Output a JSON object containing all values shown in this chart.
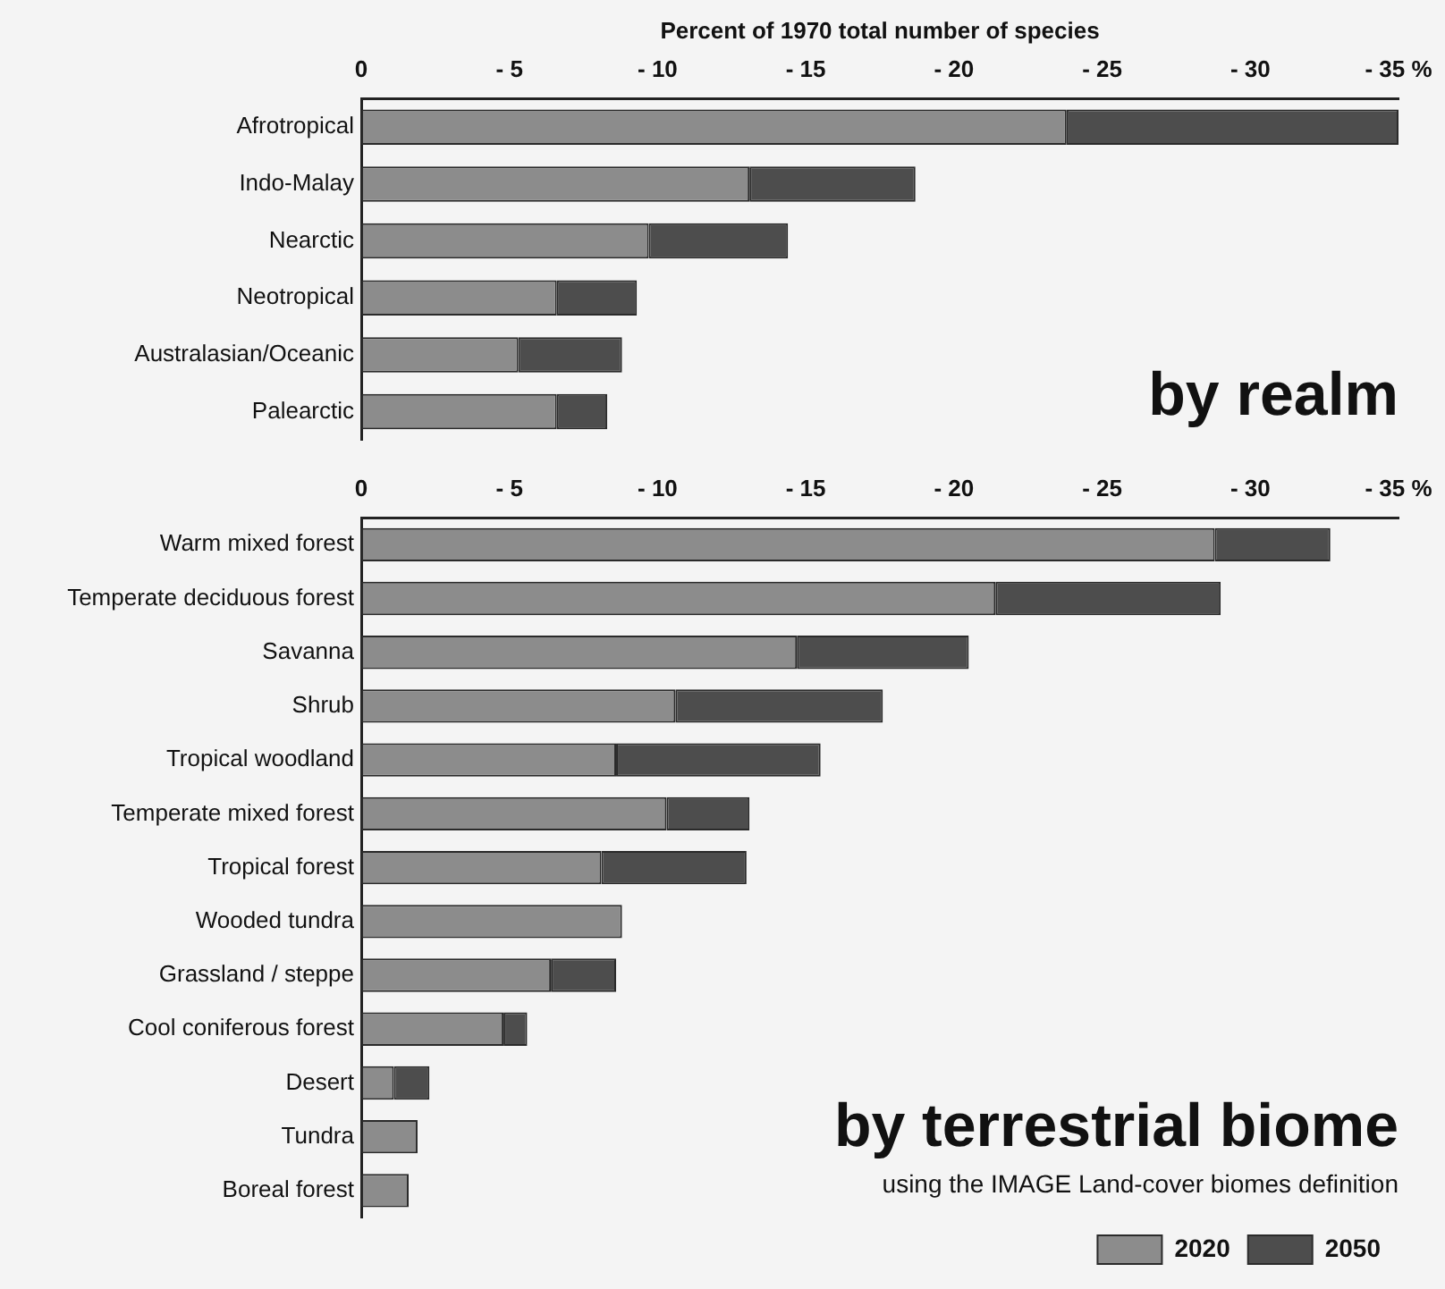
{
  "chart_data": [
    {
      "type": "bar",
      "orientation": "horizontal",
      "stacked": true,
      "xlabel": "Percent of 1970 total number of species",
      "categories": [
        "Afrotropical",
        "Indo-Malay",
        "Nearctic",
        "Neotropical",
        "Australasian/Oceanic",
        "Palearctic"
      ],
      "series": [
        {
          "color": "#8c8c8c",
          "values": [
            -23.8,
            -13.1,
            -9.7,
            -6.6,
            -5.3,
            -6.6
          ]
        },
        {
          "color": "#4d4d4d",
          "values": [
            -11.2,
            -5.6,
            -4.7,
            -2.7,
            -3.5,
            -1.7
          ]
        }
      ],
      "xlim": [
        0,
        -35
      ],
      "xticks": [
        0,
        {
          "value": -5,
          "label": "- 5"
        },
        {
          "value": -10,
          "label": "- 10"
        },
        {
          "value": -15,
          "label": "- 15"
        },
        {
          "value": -20,
          "label": "- 20"
        },
        {
          "value": -25,
          "label": "- 25"
        },
        {
          "value": -30,
          "label": "- 30"
        },
        {
          "value": -35,
          "label": "- 35 %"
        }
      ],
      "grid": false,
      "legend": false,
      "annotations": [
        "by realm"
      ]
    },
    {
      "type": "bar",
      "orientation": "horizontal",
      "stacked": true,
      "categories": [
        "Warm mixed forest",
        "Temperate deciduous forest",
        "Savanna",
        "Shrub",
        "Tropical woodland",
        "Temperate mixed forest",
        "Tropical forest",
        "Wooded tundra",
        "Grassland / steppe",
        "Cool coniferous forest",
        "Desert",
        "Tundra",
        "Boreal forest"
      ],
      "series": [
        {
          "name": "2020",
          "color": "#8c8c8c",
          "values": [
            -28.8,
            -21.4,
            -14.7,
            -10.6,
            -8.6,
            -10.3,
            -8.1,
            -8.8,
            -6.4,
            -4.8,
            -1.1,
            -1.9,
            -1.6
          ]
        },
        {
          "name": "2050",
          "color": "#4d4d4d",
          "values": [
            -3.9,
            -7.6,
            -5.8,
            -7.0,
            -6.9,
            -2.8,
            -4.9,
            0,
            -2.2,
            -0.8,
            -1.2,
            0,
            0
          ]
        }
      ],
      "xlim": [
        0,
        -35
      ],
      "xticks": [
        0,
        {
          "value": -5,
          "label": "- 5"
        },
        {
          "value": -10,
          "label": "- 10"
        },
        {
          "value": -15,
          "label": "- 15"
        },
        {
          "value": -20,
          "label": "- 20"
        },
        {
          "value": -25,
          "label": "- 25"
        },
        {
          "value": -30,
          "label": "- 30"
        },
        {
          "value": -35,
          "label": "- 35 %"
        }
      ],
      "grid": false,
      "legend": "bottom right",
      "annotations": [
        "by terrestrial biome",
        "using the IMAGE Land-cover biomes definition"
      ]
    }
  ]
}
